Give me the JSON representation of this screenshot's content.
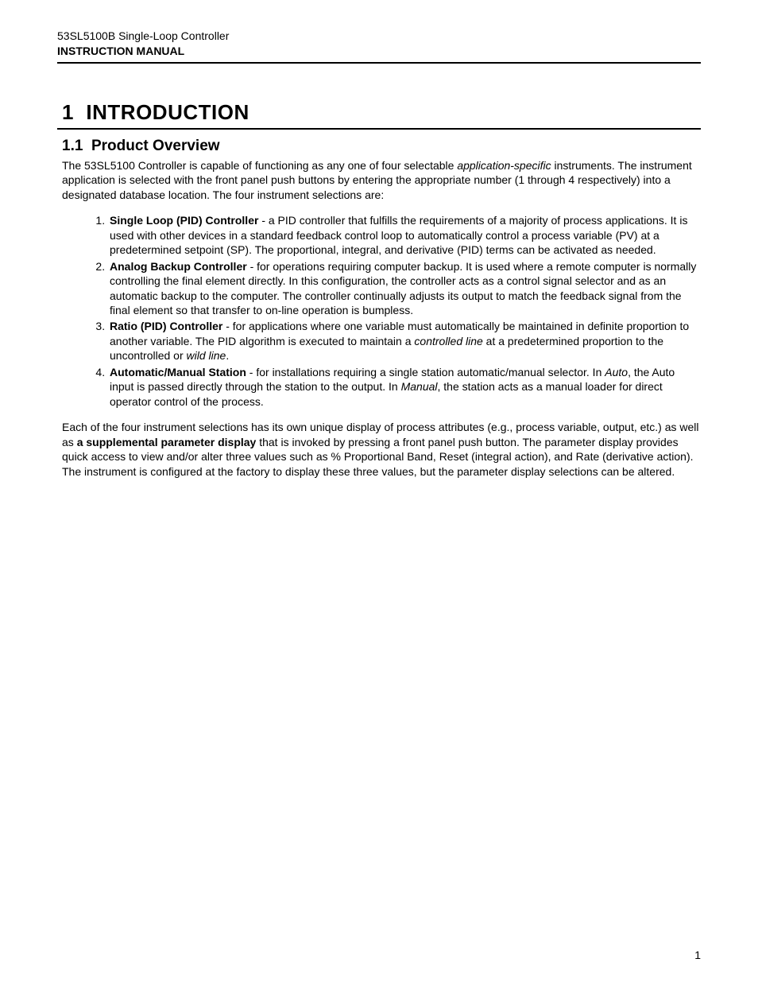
{
  "header": {
    "product_line": "53SL5100B Single-Loop Controller",
    "doc_type": "INSTRUCTION MANUAL"
  },
  "chapter": {
    "number_prefix": "1",
    "title": "INTRODUCTION"
  },
  "section": {
    "number_prefix": "1.1",
    "title": "Product Overview"
  },
  "intro": {
    "p1a": "The 53SL5100 Controller is capable of functioning as any one of four selectable ",
    "p1_em": "application-specific",
    "p1b": " instruments. The instrument application is selected with the front panel push buttons by entering the appropriate number (1 through 4 respectively) into a designated database location. The four instrument selections are:"
  },
  "list": {
    "items": [
      {
        "lead": "Single Loop (PID) Controller",
        "body": " - a PID controller that fulfills the requirements of a majority of process applications. It is used with other devices in a standard feedback control loop to automatically control a process variable (PV) at a predetermined setpoint (SP). The proportional, integral, and derivative (PID) terms can be activated as needed."
      },
      {
        "lead": "Analog Backup Controller",
        "body": " - for operations requiring computer backup. It is used where a remote computer is normally controlling the final element directly. In this configuration, the controller acts as a control signal selector and as an automatic backup to the computer. The controller continually adjusts its output to match the feedback signal from the final element so that transfer to on-line operation is bumpless."
      },
      {
        "lead": "Ratio (PID) Controller",
        "body_a": " - for applications where one variable must automatically be maintained in definite proportion to another variable. The PID algorithm is executed to maintain a ",
        "em1": "controlled line",
        "body_b": " at a predetermined proportion to the uncontrolled or ",
        "em2": "wild line",
        "body_c": "."
      },
      {
        "lead": "Automatic/Manual Station",
        "body_a": " - for installations requiring a single station automatic/manual selector. In ",
        "em1": "Auto",
        "body_b": ", the Auto input is passed directly through the station to the output. In ",
        "em2": "Manual",
        "body_c": ", the station acts as a manual loader for direct operator control of the process."
      }
    ]
  },
  "closing": {
    "a": "Each of the four instrument selections has its own unique display of process attributes (e.g., process variable, output, etc.) as well as ",
    "bold": "a supplemental parameter display",
    "b": " that is invoked by pressing a front panel push button. The parameter display provides quick access to view and/or alter three values such as % Proportional Band, Reset (integral action), and Rate (derivative action). The instrument is configured at the factory to display these three values, but the parameter display selections can be altered."
  },
  "page_number": "1"
}
